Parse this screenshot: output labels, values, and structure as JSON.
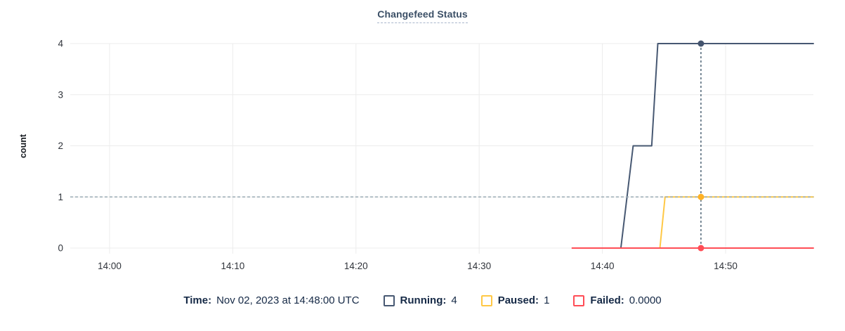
{
  "header": {
    "title": "Changefeed Status"
  },
  "chart_data": {
    "type": "line",
    "title": "Changefeed Status",
    "ylabel": "count",
    "xlabel": "",
    "ylim": [
      0,
      4
    ],
    "y_ticks": [
      0,
      1,
      2,
      3,
      4
    ],
    "x_ticks": [
      {
        "time": "14:00:00",
        "label": "14:00"
      },
      {
        "time": "14:10:00",
        "label": "14:10"
      },
      {
        "time": "14:20:00",
        "label": "14:20"
      },
      {
        "time": "14:30:00",
        "label": "14:30"
      },
      {
        "time": "14:40:00",
        "label": "14:40"
      },
      {
        "time": "14:50:00",
        "label": "14:50"
      }
    ],
    "x_domain": [
      "13:56:50",
      "14:57:10"
    ],
    "grid": true,
    "grid_color": "#ececec",
    "threshold_line": {
      "value": 1,
      "style": "dashed",
      "color": "#9aabb4"
    },
    "series": [
      {
        "name": "Running",
        "color": "#475872",
        "dot_color": "#44546e",
        "points": [
          [
            "14:41:30",
            0
          ],
          [
            "14:42:30",
            2
          ],
          [
            "14:44:00",
            2
          ],
          [
            "14:44:30",
            4
          ],
          [
            "14:57:10",
            4
          ]
        ]
      },
      {
        "name": "Paused",
        "color": "#ffc845",
        "dot_color": "#ffb125",
        "points": [
          [
            "14:44:40",
            0
          ],
          [
            "14:45:05",
            1
          ],
          [
            "14:57:10",
            1
          ]
        ]
      },
      {
        "name": "Failed",
        "color": "#ff4d56",
        "dot_color": "#ff4d56",
        "points": [
          [
            "14:37:30",
            0
          ],
          [
            "14:57:10",
            0
          ]
        ]
      }
    ],
    "crosshair": {
      "time": "14:48:00",
      "color": "#41586b",
      "values": [
        4,
        1,
        0
      ]
    }
  },
  "legend": {
    "time_label": "Time:",
    "time_value": "Nov 02, 2023 at 14:48:00 UTC",
    "items": [
      {
        "label": "Running:",
        "value": "4",
        "color": "#475872"
      },
      {
        "label": "Paused:",
        "value": "1",
        "color": "#ffc845"
      },
      {
        "label": "Failed:",
        "value": "0.0000",
        "color": "#ff4d56"
      }
    ]
  }
}
